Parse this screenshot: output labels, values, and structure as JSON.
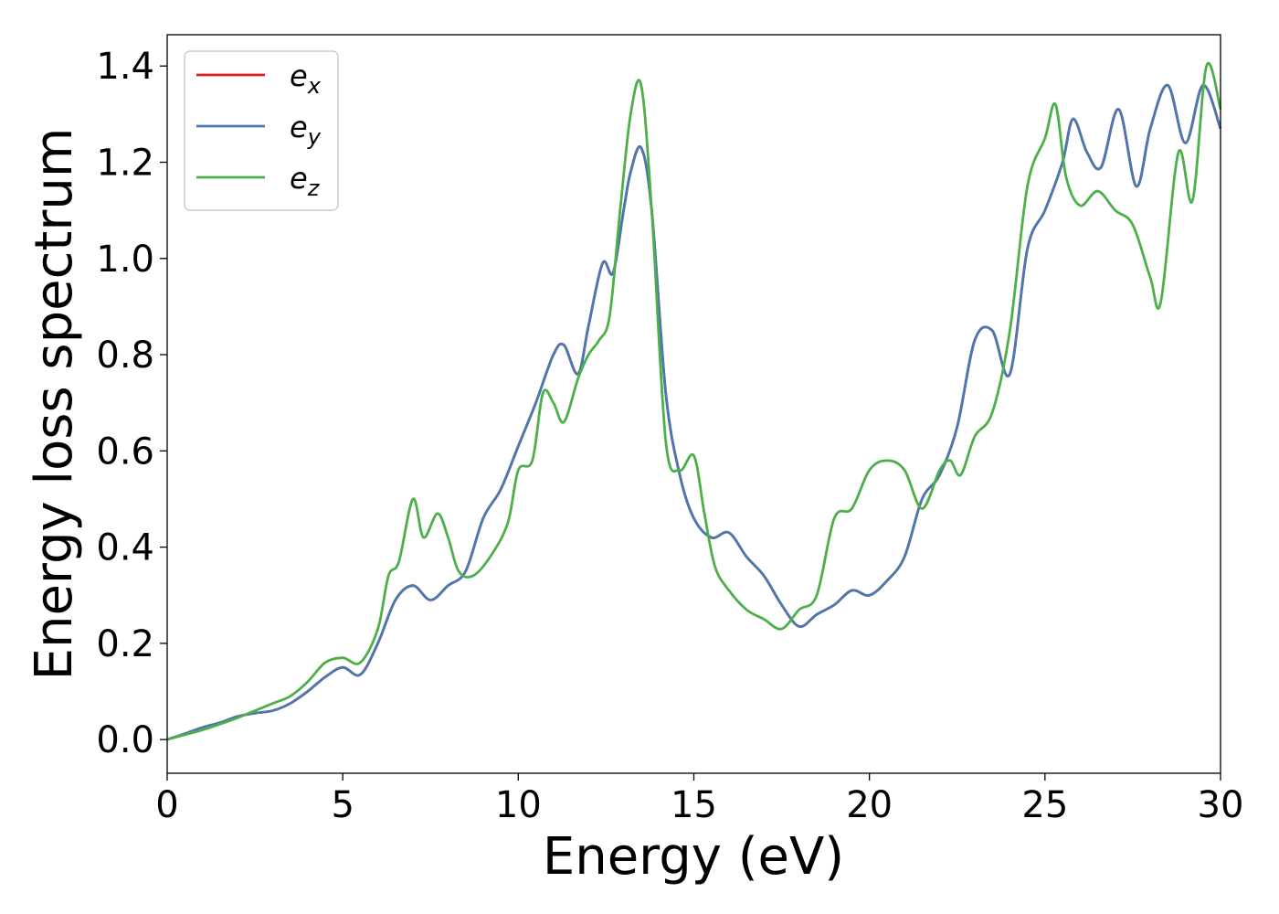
{
  "chart_data": {
    "type": "line",
    "xlabel": "Energy (eV)",
    "ylabel": "Energy loss spectrum",
    "xlim": [
      0,
      30
    ],
    "ylim": [
      -0.07,
      1.465
    ],
    "xticks": [
      0,
      5,
      10,
      15,
      20,
      25,
      30
    ],
    "yticks": [
      0.0,
      0.2,
      0.4,
      0.6,
      0.8,
      1.0,
      1.2,
      1.4
    ],
    "grid": false,
    "legend_position": "top-left",
    "series": [
      {
        "name": "e",
        "sub": "x",
        "color": "#e41a1c",
        "x": [
          0,
          0.5,
          1,
          1.5,
          2,
          2.5,
          3,
          3.5,
          4,
          4.5,
          5,
          5.5,
          6,
          6.5,
          7,
          7.5,
          8,
          8.5,
          9,
          9.5,
          10,
          10.5,
          11,
          11.3,
          11.7,
          12,
          12.4,
          12.7,
          13,
          13.2,
          13.5,
          13.8,
          14.2,
          14.6,
          15,
          15.5,
          16,
          16.5,
          17,
          17.5,
          18,
          18.5,
          19,
          19.5,
          20,
          20.5,
          21,
          21.5,
          22,
          22.5,
          23,
          23.5,
          24,
          24.5,
          25,
          25.5,
          25.8,
          26.2,
          26.6,
          27.1,
          27.6,
          28,
          28.5,
          29,
          29.5,
          30
        ],
        "y": [
          0,
          0.012,
          0.025,
          0.035,
          0.048,
          0.055,
          0.06,
          0.075,
          0.1,
          0.13,
          0.15,
          0.135,
          0.2,
          0.29,
          0.32,
          0.29,
          0.32,
          0.35,
          0.46,
          0.52,
          0.61,
          0.7,
          0.8,
          0.82,
          0.76,
          0.86,
          0.99,
          0.97,
          1.1,
          1.18,
          1.23,
          1.1,
          0.72,
          0.55,
          0.46,
          0.42,
          0.43,
          0.38,
          0.34,
          0.28,
          0.235,
          0.26,
          0.28,
          0.31,
          0.3,
          0.33,
          0.38,
          0.5,
          0.55,
          0.65,
          0.83,
          0.85,
          0.76,
          1.02,
          1.1,
          1.2,
          1.29,
          1.22,
          1.19,
          1.31,
          1.15,
          1.27,
          1.36,
          1.24,
          1.36,
          1.27
        ]
      },
      {
        "name": "e",
        "sub": "y",
        "color": "#4a78b0",
        "x": [
          0,
          0.5,
          1,
          1.5,
          2,
          2.5,
          3,
          3.5,
          4,
          4.5,
          5,
          5.5,
          6,
          6.5,
          7,
          7.5,
          8,
          8.5,
          9,
          9.5,
          10,
          10.5,
          11,
          11.3,
          11.7,
          12,
          12.4,
          12.7,
          13,
          13.2,
          13.5,
          13.8,
          14.2,
          14.6,
          15,
          15.5,
          16,
          16.5,
          17,
          17.5,
          18,
          18.5,
          19,
          19.5,
          20,
          20.5,
          21,
          21.5,
          22,
          22.5,
          23,
          23.5,
          24,
          24.5,
          25,
          25.5,
          25.8,
          26.2,
          26.6,
          27.1,
          27.6,
          28,
          28.5,
          29,
          29.5,
          30
        ],
        "y": [
          0,
          0.012,
          0.025,
          0.035,
          0.048,
          0.055,
          0.06,
          0.075,
          0.1,
          0.13,
          0.15,
          0.135,
          0.2,
          0.29,
          0.32,
          0.29,
          0.32,
          0.35,
          0.46,
          0.52,
          0.61,
          0.7,
          0.8,
          0.82,
          0.76,
          0.86,
          0.99,
          0.97,
          1.1,
          1.18,
          1.23,
          1.1,
          0.72,
          0.55,
          0.46,
          0.42,
          0.43,
          0.38,
          0.34,
          0.28,
          0.235,
          0.26,
          0.28,
          0.31,
          0.3,
          0.33,
          0.38,
          0.5,
          0.55,
          0.65,
          0.83,
          0.85,
          0.76,
          1.02,
          1.1,
          1.2,
          1.29,
          1.22,
          1.19,
          1.31,
          1.15,
          1.27,
          1.36,
          1.24,
          1.36,
          1.27
        ]
      },
      {
        "name": "e",
        "sub": "z",
        "color": "#4daf4a",
        "x": [
          0,
          0.5,
          1,
          1.5,
          2,
          2.5,
          3,
          3.5,
          4,
          4.5,
          5,
          5.5,
          6,
          6.3,
          6.6,
          7,
          7.3,
          7.7,
          8,
          8.3,
          8.7,
          9.2,
          9.7,
          10,
          10.4,
          10.7,
          11,
          11.3,
          11.7,
          12,
          12.3,
          12.6,
          12.9,
          13.2,
          13.5,
          13.8,
          14.2,
          14.6,
          15,
          15.3,
          15.6,
          16,
          16.5,
          17,
          17.5,
          18,
          18.5,
          19,
          19.5,
          20,
          20.5,
          21,
          21.5,
          22,
          22.3,
          22.6,
          23,
          23.5,
          24,
          24.5,
          25,
          25.3,
          25.6,
          26,
          26.5,
          27,
          27.5,
          28,
          28.3,
          28.8,
          29.2,
          29.6,
          30
        ],
        "y": [
          0,
          0.01,
          0.02,
          0.032,
          0.045,
          0.06,
          0.075,
          0.09,
          0.12,
          0.16,
          0.17,
          0.16,
          0.23,
          0.34,
          0.37,
          0.5,
          0.42,
          0.47,
          0.42,
          0.35,
          0.34,
          0.38,
          0.45,
          0.56,
          0.58,
          0.72,
          0.7,
          0.66,
          0.75,
          0.8,
          0.83,
          0.88,
          1.1,
          1.3,
          1.36,
          1.1,
          0.62,
          0.56,
          0.59,
          0.47,
          0.36,
          0.31,
          0.27,
          0.25,
          0.23,
          0.27,
          0.3,
          0.46,
          0.48,
          0.56,
          0.58,
          0.56,
          0.48,
          0.56,
          0.58,
          0.55,
          0.63,
          0.68,
          0.85,
          1.15,
          1.25,
          1.32,
          1.17,
          1.11,
          1.14,
          1.1,
          1.07,
          0.96,
          0.91,
          1.22,
          1.12,
          1.4,
          1.31
        ]
      }
    ]
  }
}
